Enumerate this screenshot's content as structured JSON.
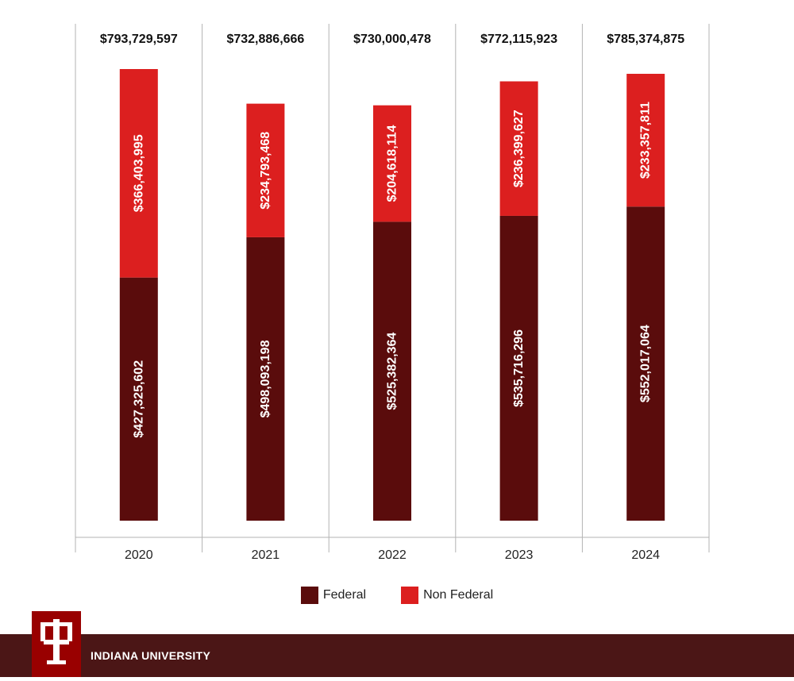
{
  "chart_data": {
    "type": "bar",
    "stacked": true,
    "categories": [
      "2020",
      "2021",
      "2022",
      "2023",
      "2024"
    ],
    "series": [
      {
        "name": "Federal",
        "color": "#5a0c0c",
        "values": [
          427325602,
          498093198,
          525382364,
          535716296,
          552017064
        ],
        "labels": [
          "$427,325,602",
          "$498,093,198",
          "$525,382,364",
          "$535,716,296",
          "$552,017,064"
        ]
      },
      {
        "name": "Non Federal",
        "color": "#dc1f1f",
        "values": [
          366403995,
          234793468,
          204618114,
          236399627,
          233357811
        ],
        "labels": [
          "$366,403,995",
          "$234,793,468",
          "$204,618,114",
          "$236,399,627",
          "$233,357,811"
        ]
      }
    ],
    "totals": [
      "$793,729,597",
      "$732,886,666",
      "$730,000,478",
      "$772,115,923",
      "$785,374,875"
    ],
    "ylim": [
      0,
      793729597
    ],
    "grid": "vertical separators",
    "legend_position": "bottom-center"
  },
  "legend": {
    "federal": "Federal",
    "non_federal": "Non Federal"
  },
  "footer": {
    "institution": "INDIANA UNIVERSITY"
  },
  "colors": {
    "federal": "#5a0c0c",
    "non_federal": "#dc1f1f",
    "footer_bg": "#4b1616",
    "logo_bg": "#990000"
  }
}
